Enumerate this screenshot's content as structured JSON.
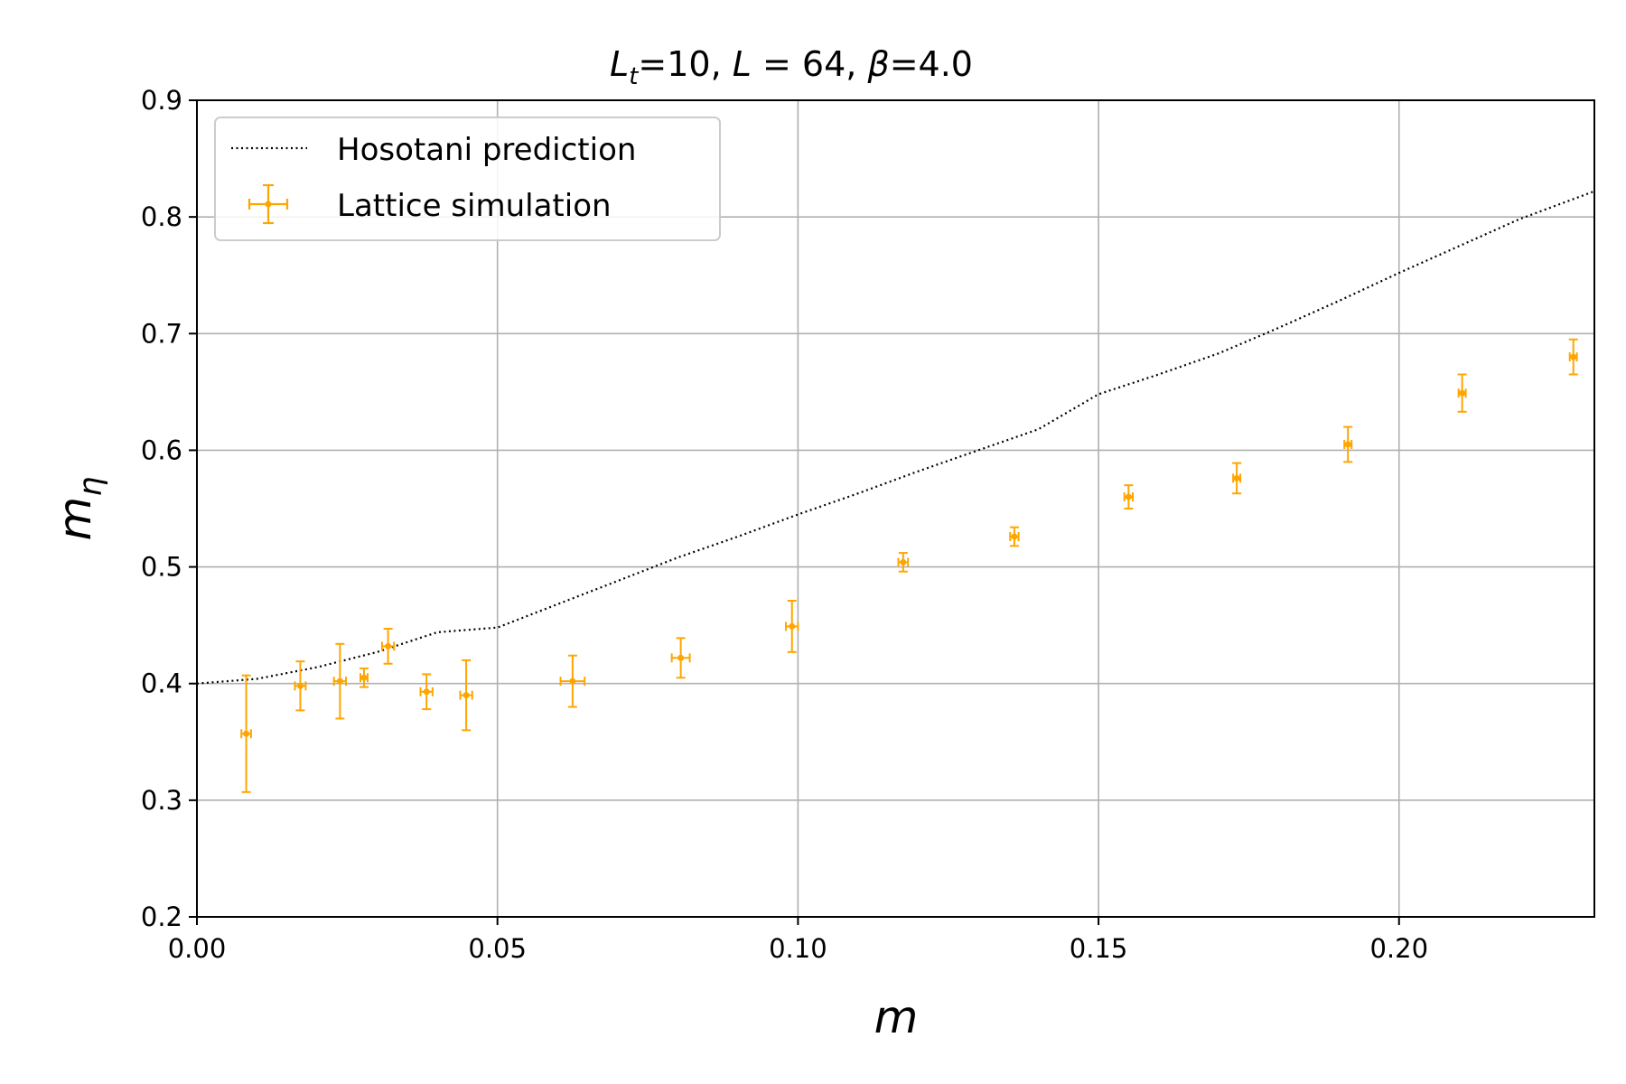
{
  "chart_data": {
    "type": "scatter",
    "title": "Lt=10, L = 64, β=4.0",
    "xlabel": "m",
    "ylabel": "mη",
    "xlim": [
      0.0,
      0.2325
    ],
    "ylim": [
      0.2,
      0.9
    ],
    "x_ticks": [
      "0.00",
      "0.05",
      "0.10",
      "0.15",
      "0.20"
    ],
    "x_tick_values": [
      0.0,
      0.05,
      0.1,
      0.15,
      0.2
    ],
    "y_ticks": [
      "0.2",
      "0.3",
      "0.4",
      "0.5",
      "0.6",
      "0.7",
      "0.8",
      "0.9"
    ],
    "y_tick_values": [
      0.2,
      0.3,
      0.4,
      0.5,
      0.6,
      0.7,
      0.8,
      0.9
    ],
    "grid": true,
    "legend_position": "top-left",
    "legend": [
      {
        "label": "Hosotani prediction",
        "style": "dotted-line",
        "color": "#000000"
      },
      {
        "label": "Lattice simulation",
        "style": "errorbar",
        "color": "#FFA500"
      }
    ],
    "series": [
      {
        "name": "Hosotani prediction",
        "kind": "line",
        "color": "#000000",
        "x": [
          0.0,
          0.01,
          0.02,
          0.03,
          0.04,
          0.05,
          0.06,
          0.07,
          0.08,
          0.09,
          0.1,
          0.11,
          0.12,
          0.13,
          0.14,
          0.15,
          0.16,
          0.17,
          0.18,
          0.19,
          0.2,
          0.21,
          0.22,
          0.2325
        ],
        "y": [
          0.4,
          0.404,
          0.414,
          0.427,
          0.444,
          0.448,
          0.468,
          0.488,
          0.508,
          0.526,
          0.545,
          0.563,
          0.582,
          0.6,
          0.618,
          0.648,
          0.665,
          0.683,
          0.705,
          0.728,
          0.752,
          0.775,
          0.798,
          0.822
        ]
      },
      {
        "name": "Lattice simulation",
        "kind": "errorbar",
        "color": "#FFA500",
        "x": [
          0.0082,
          0.0172,
          0.0238,
          0.0278,
          0.0318,
          0.0382,
          0.0448,
          0.0625,
          0.0805,
          0.099,
          0.1175,
          0.136,
          0.155,
          0.173,
          0.1915,
          0.2105,
          0.229
        ],
        "y": [
          0.357,
          0.398,
          0.402,
          0.405,
          0.432,
          0.393,
          0.39,
          0.402,
          0.422,
          0.449,
          0.504,
          0.526,
          0.56,
          0.576,
          0.605,
          0.649,
          0.68
        ],
        "yerr": [
          0.05,
          0.021,
          0.032,
          0.008,
          0.015,
          0.015,
          0.03,
          0.022,
          0.017,
          0.022,
          0.008,
          0.008,
          0.01,
          0.013,
          0.015,
          0.016,
          0.015
        ],
        "xerr": [
          0.0008,
          0.0009,
          0.001,
          0.0006,
          0.001,
          0.001,
          0.001,
          0.002,
          0.0015,
          0.001,
          0.0008,
          0.0007,
          0.0007,
          0.0006,
          0.0006,
          0.0006,
          0.0006
        ]
      }
    ]
  }
}
